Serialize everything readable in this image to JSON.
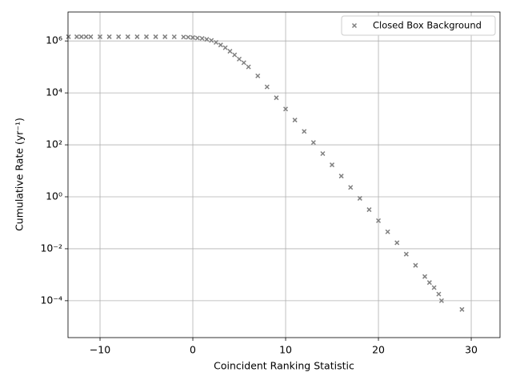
{
  "chart_data": {
    "type": "scatter",
    "x_label": "Coincident Ranking Statistic",
    "y_label": "Cumulative Rate (yr⁻¹)",
    "log_y": true,
    "grid": true,
    "legend_position": "upper right",
    "xlim": [
      -13.45,
      33.1
    ],
    "ylim": [
      3.8e-06,
      13000000.0
    ],
    "xticks": [
      {
        "value": -10,
        "label": "−10"
      },
      0,
      10,
      20,
      30
    ],
    "yticks": [
      {
        "value": 0.0001,
        "label": "10⁻⁴"
      },
      {
        "value": 0.01,
        "label": "10⁻²"
      },
      {
        "value": 1,
        "label": "10⁰"
      },
      {
        "value": 100,
        "label": "10²"
      },
      {
        "value": 10000,
        "label": "10⁴"
      },
      {
        "value": 1000000,
        "label": "10⁶"
      }
    ],
    "series": [
      {
        "name": "Closed Box Background",
        "color": "#808080",
        "x": [
          -13.4,
          -12.5,
          -12,
          -11.5,
          -11,
          -10,
          -9,
          -8,
          -7,
          -6,
          -5,
          -4,
          -3,
          -2,
          -1,
          -0.5,
          0,
          0.5,
          1,
          1.5,
          2,
          2.5,
          3,
          3.5,
          4,
          4.5,
          5,
          5.5,
          6,
          7,
          8,
          9,
          10,
          11,
          12,
          13,
          14,
          15,
          16,
          17,
          18,
          19,
          20,
          21,
          22,
          23,
          24,
          25,
          25.5,
          26,
          26.5,
          26.8,
          29
        ],
        "values": [
          1450000,
          1450000,
          1450000,
          1450000,
          1450000,
          1450000,
          1450000,
          1450000,
          1450000,
          1450000,
          1450000,
          1450000,
          1450000,
          1440000,
          1420000,
          1390000,
          1350000,
          1300000,
          1250000,
          1150000,
          1050000,
          880000,
          700000,
          550000,
          400000,
          290000,
          200000,
          145000,
          100000,
          45000,
          17000,
          6500,
          2400,
          900,
          330,
          123,
          46,
          17,
          6.3,
          2.3,
          0.87,
          0.32,
          0.12,
          0.045,
          0.017,
          0.0062,
          0.0023,
          0.00085,
          0.0005,
          0.00032,
          0.00018,
          0.0001,
          4.6e-05
        ]
      }
    ]
  }
}
